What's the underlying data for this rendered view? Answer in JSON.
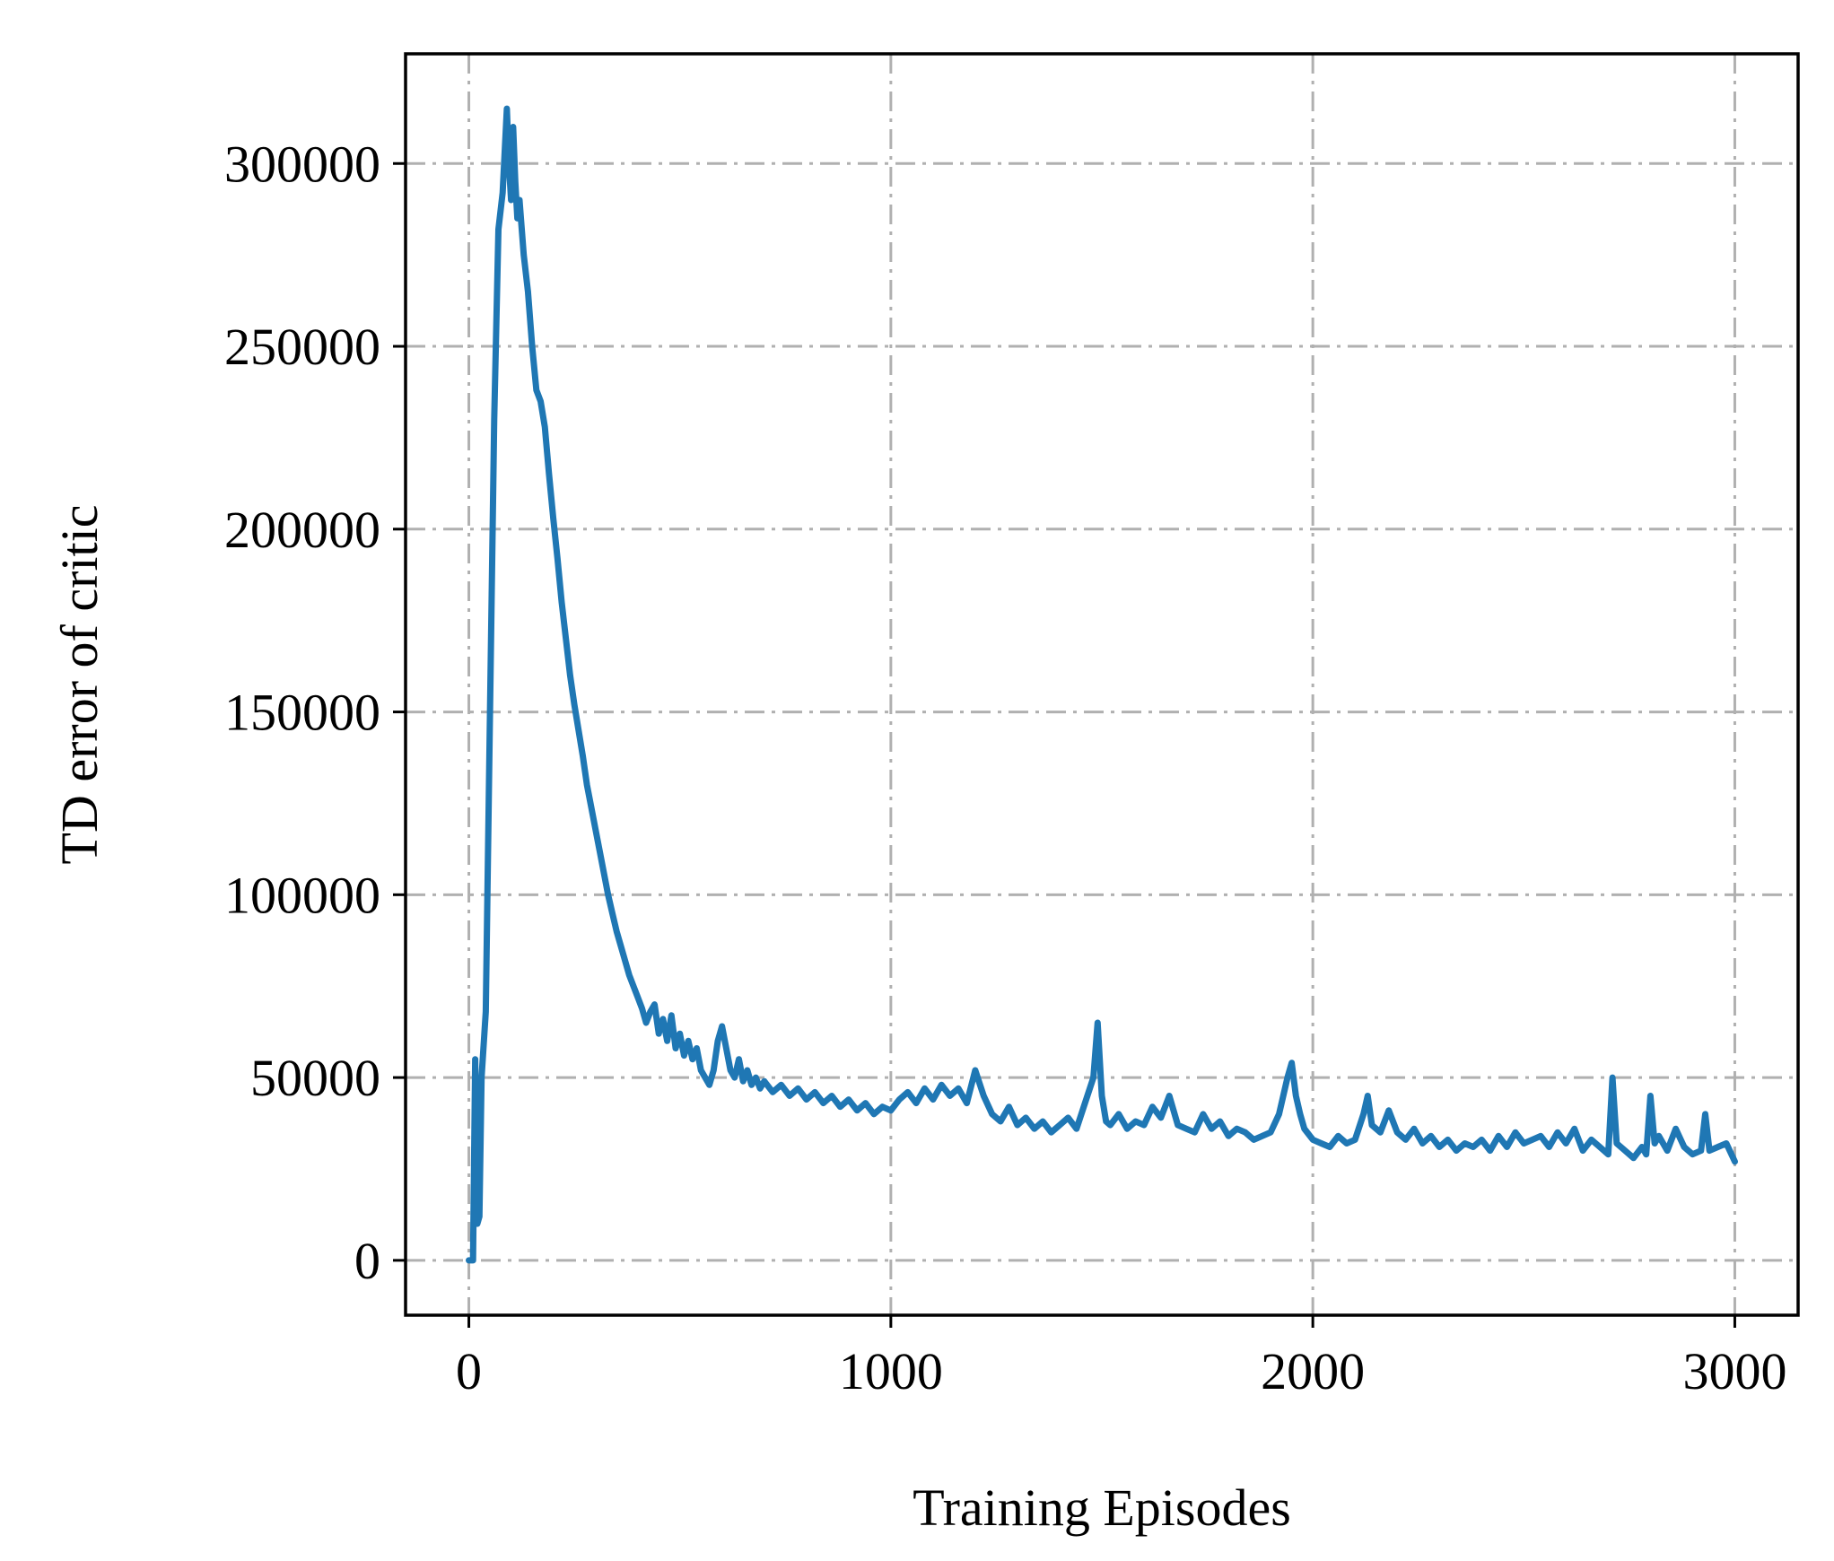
{
  "chart_data": {
    "type": "line",
    "xlabel": "Training Episodes",
    "ylabel": "TD error of critic",
    "xlim": [
      -150,
      3150
    ],
    "ylim": [
      -15000,
      330000
    ],
    "xticks": [
      0,
      1000,
      2000,
      3000
    ],
    "xtick_labels": [
      "0",
      "1000",
      "2000",
      "3000"
    ],
    "yticks": [
      0,
      50000,
      100000,
      150000,
      200000,
      250000,
      300000
    ],
    "ytick_labels": [
      "0",
      "50000",
      "100000",
      "150000",
      "200000",
      "250000",
      "300000"
    ],
    "grid": true,
    "grid_style": "dash-dot",
    "series": [
      {
        "color": "#1f77b4",
        "x": [
          0,
          10,
          15,
          20,
          25,
          30,
          40,
          50,
          60,
          70,
          80,
          90,
          95,
          100,
          105,
          110,
          115,
          120,
          130,
          140,
          150,
          160,
          170,
          180,
          190,
          200,
          210,
          220,
          230,
          240,
          250,
          260,
          270,
          280,
          290,
          300,
          310,
          320,
          330,
          340,
          350,
          360,
          370,
          380,
          390,
          400,
          410,
          420,
          430,
          440,
          450,
          460,
          470,
          480,
          490,
          500,
          510,
          520,
          530,
          540,
          550,
          560,
          570,
          580,
          590,
          600,
          610,
          620,
          630,
          640,
          650,
          660,
          670,
          680,
          690,
          700,
          720,
          740,
          760,
          780,
          800,
          820,
          840,
          860,
          880,
          900,
          920,
          940,
          960,
          980,
          1000,
          1020,
          1040,
          1060,
          1080,
          1100,
          1120,
          1140,
          1160,
          1180,
          1200,
          1220,
          1240,
          1260,
          1280,
          1300,
          1320,
          1340,
          1360,
          1380,
          1400,
          1420,
          1440,
          1460,
          1480,
          1490,
          1500,
          1510,
          1520,
          1540,
          1560,
          1580,
          1600,
          1620,
          1640,
          1660,
          1680,
          1700,
          1720,
          1740,
          1760,
          1780,
          1800,
          1820,
          1840,
          1860,
          1880,
          1900,
          1920,
          1940,
          1950,
          1960,
          1970,
          1980,
          2000,
          2020,
          2040,
          2060,
          2080,
          2100,
          2120,
          2130,
          2140,
          2160,
          2180,
          2200,
          2220,
          2240,
          2260,
          2280,
          2300,
          2320,
          2340,
          2360,
          2380,
          2400,
          2420,
          2440,
          2460,
          2480,
          2500,
          2520,
          2540,
          2560,
          2580,
          2600,
          2620,
          2640,
          2660,
          2680,
          2700,
          2710,
          2720,
          2740,
          2760,
          2780,
          2790,
          2800,
          2810,
          2820,
          2840,
          2860,
          2880,
          2900,
          2920,
          2930,
          2940,
          2960,
          2980,
          3000
        ],
        "y": [
          0,
          0,
          55000,
          10000,
          12000,
          50000,
          68000,
          150000,
          230000,
          282000,
          292000,
          315000,
          300000,
          290000,
          310000,
          295000,
          285000,
          290000,
          275000,
          265000,
          250000,
          238000,
          235000,
          228000,
          215000,
          203000,
          192000,
          180000,
          170000,
          160000,
          152000,
          145000,
          138000,
          130000,
          124000,
          118000,
          112000,
          106000,
          100000,
          95000,
          90000,
          86000,
          82000,
          78000,
          75000,
          72000,
          69000,
          65000,
          68000,
          70000,
          62000,
          66000,
          60000,
          67000,
          58000,
          62000,
          56000,
          60000,
          55000,
          58000,
          52000,
          50000,
          48000,
          52000,
          60000,
          64000,
          58000,
          52000,
          50000,
          55000,
          49000,
          52000,
          48000,
          50000,
          47000,
          49000,
          46000,
          48000,
          45000,
          47000,
          44000,
          46000,
          43000,
          45000,
          42000,
          44000,
          41000,
          43000,
          40000,
          42000,
          41000,
          44000,
          46000,
          43000,
          47000,
          44000,
          48000,
          45000,
          47000,
          43000,
          52000,
          45000,
          40000,
          38000,
          42000,
          37000,
          39000,
          36000,
          38000,
          35000,
          37000,
          39000,
          36000,
          43000,
          50000,
          65000,
          45000,
          38000,
          37000,
          40000,
          36000,
          38000,
          37000,
          42000,
          39000,
          45000,
          37000,
          36000,
          35000,
          40000,
          36000,
          38000,
          34000,
          36000,
          35000,
          33000,
          34000,
          35000,
          40000,
          50000,
          54000,
          45000,
          40000,
          36000,
          33000,
          32000,
          31000,
          34000,
          32000,
          33000,
          40000,
          45000,
          37000,
          35000,
          41000,
          35000,
          33000,
          36000,
          32000,
          34000,
          31000,
          33000,
          30000,
          32000,
          31000,
          33000,
          30000,
          34000,
          31000,
          35000,
          32000,
          33000,
          34000,
          31000,
          35000,
          32000,
          36000,
          30000,
          33000,
          31000,
          29000,
          50000,
          32000,
          30000,
          28000,
          31000,
          29000,
          45000,
          32000,
          34000,
          30000,
          36000,
          31000,
          29000,
          30000,
          40000,
          30000,
          31000,
          32000,
          27000
        ]
      }
    ]
  }
}
